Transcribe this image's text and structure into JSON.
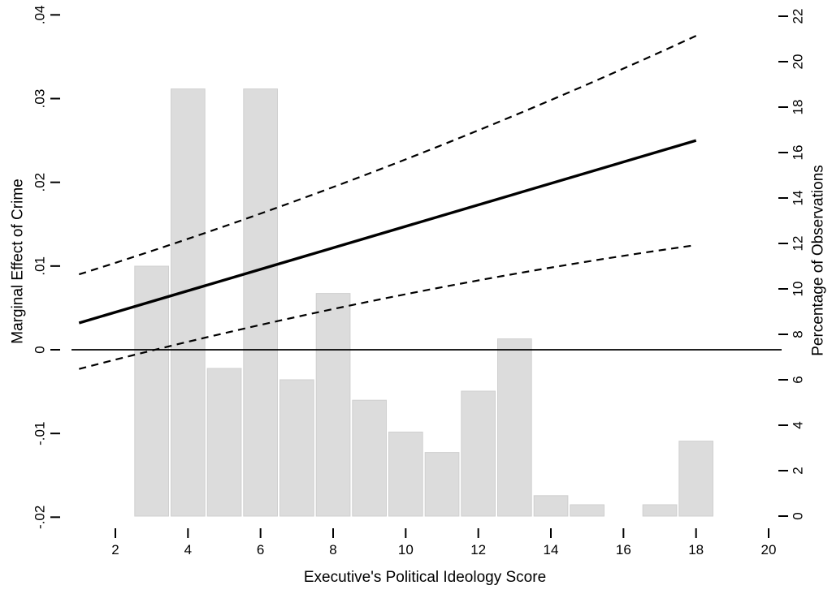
{
  "chart_data": {
    "type": "line",
    "title": "",
    "xlabel": "Executive's Political Ideology Score",
    "ylabel_left": "Marginal Effect of Crime",
    "ylabel_right": "Percentage of Observations",
    "x_axis": {
      "tick_values": [
        2,
        4,
        6,
        8,
        10,
        12,
        14,
        16,
        18,
        20
      ],
      "tick_labels": [
        "2",
        "4",
        "6",
        "8",
        "10",
        "12",
        "14",
        "16",
        "18",
        "20"
      ],
      "range": [
        0.8,
        20.4
      ]
    },
    "y_axis_left": {
      "tick_values": [
        0.04,
        0.03,
        0.02,
        0.01,
        0,
        -0.01,
        -0.02
      ],
      "tick_labels": [
        ".04",
        ".03",
        ".02",
        ".01",
        "0",
        "-.01",
        "-.02"
      ],
      "range": [
        -0.0215,
        0.0405
      ],
      "labels_rotated": true
    },
    "y_axis_right": {
      "tick_values": [
        22,
        20,
        18,
        16,
        14,
        12,
        10,
        8,
        6,
        4,
        2,
        0
      ],
      "tick_labels": [
        "22",
        "20",
        "18",
        "16",
        "14",
        "12",
        "10",
        "8",
        "6",
        "4",
        "2",
        "0"
      ],
      "range": [
        -0.35,
        22.2
      ],
      "labels_rotated": true
    },
    "reference_line_y": 0,
    "series": [
      {
        "name": "marginal_effect",
        "style": "solid",
        "axis": "left",
        "points": [
          [
            1,
            0.0032
          ],
          [
            18,
            0.025
          ]
        ]
      },
      {
        "name": "ci_upper",
        "style": "dashed",
        "axis": "left",
        "points": [
          [
            1,
            0.009
          ],
          [
            9.5,
            0.0219
          ],
          [
            18,
            0.0375
          ]
        ]
      },
      {
        "name": "ci_lower",
        "style": "dashed",
        "axis": "left",
        "points": [
          [
            1,
            -0.0023
          ],
          [
            9.5,
            0.0062
          ],
          [
            18,
            0.0125
          ]
        ]
      }
    ],
    "histogram": {
      "axis": "right",
      "bin_width": 1,
      "bin_starts": [
        2.5,
        3.5,
        4.5,
        5.5,
        6.5,
        7.5,
        8.5,
        9.5,
        10.5,
        11.5,
        12.5,
        13.5,
        14.5,
        15.5,
        16.5,
        17.5
      ],
      "heights_pct": [
        11,
        18.8,
        6.5,
        18.8,
        6,
        9.8,
        5.1,
        3.7,
        2.8,
        5.5,
        7.8,
        0.9,
        0.5,
        0,
        0.5,
        3.3
      ]
    },
    "colors": {
      "line": "#000000",
      "bar_fill": "#dcdcdc",
      "bar_border": "#cfcfcf",
      "background": "#ffffff"
    },
    "legend": "none",
    "grid": "off"
  }
}
